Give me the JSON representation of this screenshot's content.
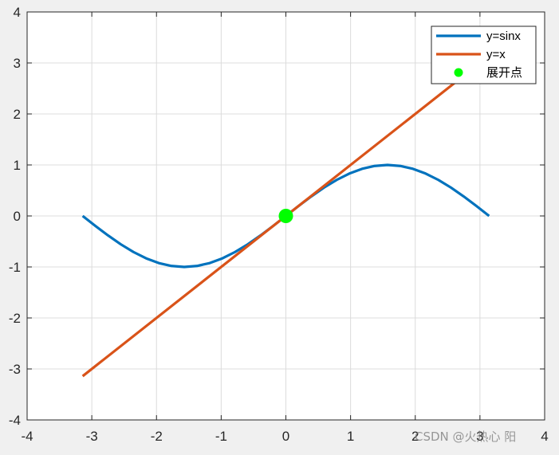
{
  "chart_data": {
    "type": "line",
    "xlim": [
      -4,
      4
    ],
    "ylim": [
      -4,
      4
    ],
    "xticks": [
      -4,
      -3,
      -2,
      -1,
      0,
      1,
      2,
      3,
      4
    ],
    "yticks": [
      -4,
      -3,
      -2,
      -1,
      0,
      1,
      2,
      3,
      4
    ],
    "xtick_labels": [
      "-4",
      "-3",
      "-2",
      "-1",
      "0",
      "1",
      "2",
      "3",
      "4"
    ],
    "ytick_labels": [
      "-4",
      "-3",
      "-2",
      "-1",
      "0",
      "1",
      "2",
      "3",
      "4"
    ],
    "grid": true,
    "legend_position": "top-right",
    "series": [
      {
        "name": "y=sinx",
        "kind": "line",
        "color": "#0072BD",
        "x": [
          -3.1416,
          -2.9452,
          -2.7489,
          -2.5525,
          -2.3562,
          -2.1598,
          -1.9635,
          -1.7671,
          -1.5708,
          -1.3744,
          -1.1781,
          -0.9817,
          -0.7854,
          -0.589,
          -0.3927,
          -0.1963,
          0.0,
          0.1963,
          0.3927,
          0.589,
          0.7854,
          0.9817,
          1.1781,
          1.3744,
          1.5708,
          1.7671,
          1.9635,
          2.1598,
          2.3562,
          2.5525,
          2.7489,
          2.9452,
          3.1416
        ],
        "y": [
          0.0,
          -0.1951,
          -0.3827,
          -0.5556,
          -0.7071,
          -0.8315,
          -0.9239,
          -0.9808,
          -1.0,
          -0.9808,
          -0.9239,
          -0.8315,
          -0.7071,
          -0.5556,
          -0.3827,
          -0.1951,
          0.0,
          0.1951,
          0.3827,
          0.5556,
          0.7071,
          0.8315,
          0.9239,
          0.9808,
          1.0,
          0.9808,
          0.9239,
          0.8315,
          0.7071,
          0.5556,
          0.3827,
          0.1951,
          0.0
        ]
      },
      {
        "name": "y=x",
        "kind": "line",
        "color": "#D95319",
        "x": [
          -3.1416,
          3.1416
        ],
        "y": [
          -3.1416,
          3.1416
        ]
      },
      {
        "name": "展开点",
        "kind": "marker",
        "color": "#00FF00",
        "x": [
          0
        ],
        "y": [
          0
        ]
      }
    ]
  },
  "watermark": "CSDN @火热心   阳"
}
